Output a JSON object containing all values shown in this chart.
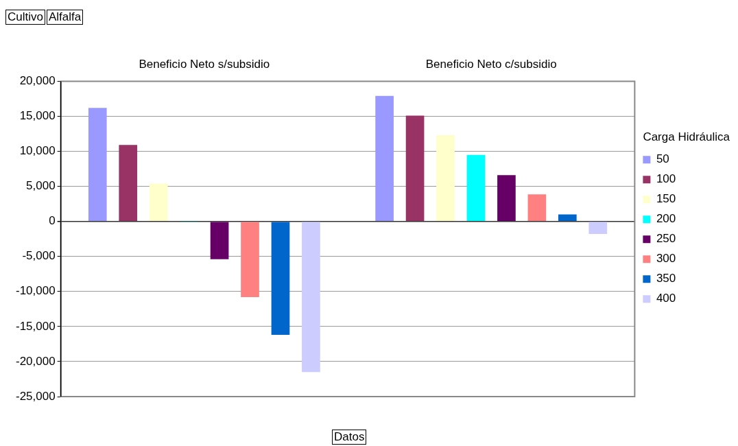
{
  "chart_data": {
    "type": "bar",
    "categories": [
      "Beneficio Neto s/subsidio",
      "Beneficio Neto c/subsidio"
    ],
    "xlabel": "Datos",
    "legend_title": "Carga Hidráulica",
    "annotations": [
      "Cultivo",
      "Alfalfa"
    ],
    "series": [
      {
        "name": "50",
        "color": "#9999ff",
        "values": [
          16200,
          17900
        ]
      },
      {
        "name": "100",
        "color": "#993366",
        "values": [
          10900,
          15100
        ]
      },
      {
        "name": "150",
        "color": "#ffffcc",
        "values": [
          5400,
          12300
        ]
      },
      {
        "name": "200",
        "color": "#00ffff",
        "values": [
          -100,
          9500
        ]
      },
      {
        "name": "250",
        "color": "#660066",
        "values": [
          -5400,
          6600
        ]
      },
      {
        "name": "300",
        "color": "#ff8080",
        "values": [
          -10800,
          3850
        ]
      },
      {
        "name": "350",
        "color": "#0066cc",
        "values": [
          -16200,
          1000
        ]
      },
      {
        "name": "400",
        "color": "#ccccff",
        "values": [
          -21500,
          -1800
        ]
      }
    ],
    "ylim": [
      -25000,
      20000
    ],
    "yticks": [
      {
        "value": -25000,
        "label": "-25,000"
      },
      {
        "value": -20000,
        "label": "-20,000"
      },
      {
        "value": -15000,
        "label": "-15,000"
      },
      {
        "value": -10000,
        "label": "-10,000"
      },
      {
        "value": -5000,
        "label": "-5,000"
      },
      {
        "value": 0,
        "label": "0"
      },
      {
        "value": 5000,
        "label": "5,000"
      },
      {
        "value": 10000,
        "label": "10,000"
      },
      {
        "value": 15000,
        "label": "15,000"
      },
      {
        "value": 20000,
        "label": "20,000"
      }
    ],
    "grid": "y",
    "legend": "right"
  }
}
